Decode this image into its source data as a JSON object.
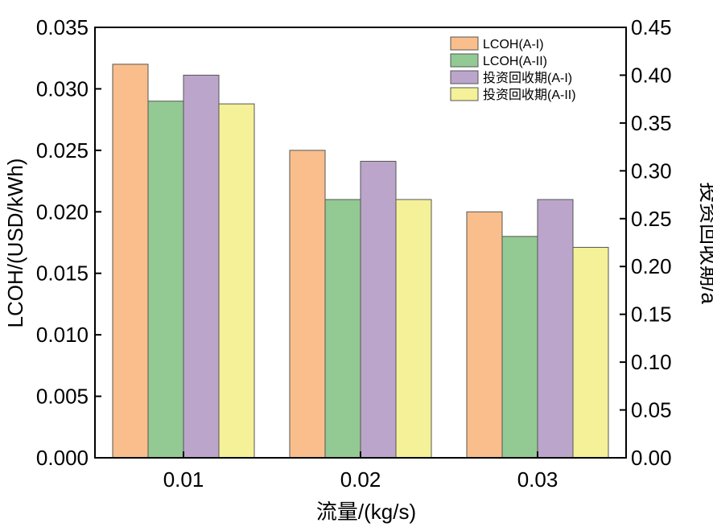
{
  "chart_data": {
    "type": "bar",
    "title": "",
    "xlabel": "流量/(kg/s)",
    "ylabel": "LCOH/(USD/kWh)",
    "y2label": "投资回收期/a",
    "categories": [
      "0.01",
      "0.02",
      "0.03"
    ],
    "ylim": [
      0,
      0.035
    ],
    "y_ticks": [
      "0.000",
      "0.005",
      "0.010",
      "0.015",
      "0.020",
      "0.025",
      "0.030",
      "0.035"
    ],
    "y2lim": [
      0,
      0.45
    ],
    "y2_ticks": [
      "0.00",
      "0.05",
      "0.10",
      "0.15",
      "0.20",
      "0.25",
      "0.30",
      "0.35",
      "0.40",
      "0.45"
    ],
    "legend_position": "top-right",
    "grid": false,
    "series": [
      {
        "name": "LCOH(A-I)",
        "axis": "left",
        "color": "#F9BE8C",
        "values": [
          0.032,
          0.025,
          0.02
        ]
      },
      {
        "name": "LCOH(A-II)",
        "axis": "left",
        "color": "#93C993",
        "values": [
          0.029,
          0.021,
          0.018
        ]
      },
      {
        "name": "投资回收期(A-I)",
        "axis": "right",
        "color": "#BCA5CB",
        "values": [
          0.4,
          0.31,
          0.27
        ]
      },
      {
        "name": "投资回收期(A-II)",
        "axis": "right",
        "color": "#F4F198",
        "values": [
          0.37,
          0.27,
          0.22
        ]
      }
    ]
  }
}
